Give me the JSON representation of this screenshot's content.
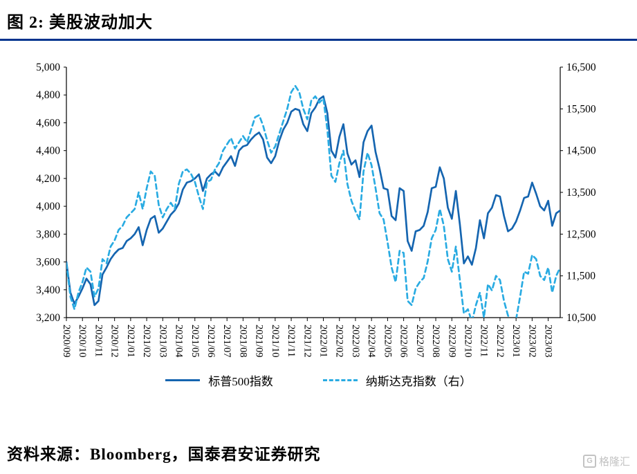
{
  "title": "图 2:  美股波动加大",
  "source": "资料来源：Bloomberg，国泰君安证券研究",
  "watermark": "格隆汇",
  "colors": {
    "divider": "#00338D",
    "sp500": "#1565B0",
    "nasdaq": "#29ABE2"
  },
  "legend": [
    {
      "label": "标普500指数"
    },
    {
      "label": "纳斯达克指数（右）"
    }
  ],
  "chart_data": {
    "type": "line",
    "title": "美股波动加大",
    "x_labels": [
      "2020/09",
      "2020/10",
      "2020/11",
      "2020/12",
      "2021/01",
      "2021/02",
      "2021/03",
      "2021/04",
      "2021/05",
      "2021/06",
      "2021/07",
      "2021/08",
      "2021/09",
      "2021/10",
      "2021/11",
      "2021/12",
      "2022/01",
      "2022/02",
      "2022/03",
      "2022/04",
      "2022/05",
      "2022/06",
      "2022/07",
      "2022/08",
      "2022/09",
      "2022/10",
      "2022/11",
      "2022/12",
      "2023/01",
      "2023/02",
      "2023/03"
    ],
    "left_axis": {
      "min": 3200,
      "max": 5000,
      "step": 200
    },
    "right_axis": {
      "min": 10500,
      "max": 16500,
      "step": 1000
    },
    "legend_position": "bottom",
    "grid": false,
    "series": [
      {
        "name": "标普500指数",
        "axis": "left",
        "style": "solid",
        "color": "#1565B0",
        "values": [
          3600,
          3380,
          3300,
          3350,
          3410,
          3480,
          3440,
          3290,
          3320,
          3510,
          3560,
          3620,
          3660,
          3690,
          3700,
          3750,
          3770,
          3800,
          3850,
          3720,
          3830,
          3910,
          3930,
          3810,
          3840,
          3890,
          3940,
          3970,
          4020,
          4120,
          4170,
          4180,
          4200,
          4230,
          4110,
          4200,
          4230,
          4250,
          4220,
          4280,
          4320,
          4360,
          4290,
          4400,
          4430,
          4440,
          4480,
          4510,
          4530,
          4480,
          4350,
          4310,
          4360,
          4470,
          4550,
          4600,
          4680,
          4700,
          4690,
          4590,
          4540,
          4670,
          4710,
          4770,
          4790,
          4670,
          4400,
          4350,
          4500,
          4590,
          4380,
          4300,
          4330,
          4210,
          4460,
          4540,
          4580,
          4390,
          4270,
          4130,
          4120,
          3930,
          3900,
          4130,
          4110,
          3750,
          3680,
          3820,
          3830,
          3860,
          3960,
          4130,
          4140,
          4280,
          4200,
          3990,
          3910,
          4110,
          3870,
          3590,
          3640,
          3580,
          3700,
          3900,
          3770,
          3950,
          3990,
          4080,
          4070,
          3930,
          3820,
          3840,
          3890,
          3970,
          4060,
          4070,
          4170,
          4090,
          4000,
          3970,
          4040,
          3860,
          3950,
          3970
        ]
      },
      {
        "name": "纳斯达克指数（右）",
        "axis": "right",
        "style": "dashed",
        "color": "#29ABE2",
        "values": [
          11800,
          11000,
          10700,
          11100,
          11350,
          11700,
          11600,
          11000,
          11200,
          11900,
          11800,
          12200,
          12350,
          12600,
          12700,
          12900,
          13000,
          13100,
          13500,
          13100,
          13600,
          14000,
          13900,
          13200,
          12900,
          13100,
          13250,
          13100,
          13700,
          14000,
          14050,
          13950,
          13750,
          13400,
          13100,
          13750,
          13800,
          14050,
          14200,
          14500,
          14650,
          14800,
          14550,
          14700,
          14850,
          14700,
          15000,
          15300,
          15350,
          15100,
          14750,
          14450,
          14600,
          14900,
          15200,
          15500,
          15900,
          16050,
          15900,
          15500,
          15250,
          15700,
          15800,
          15650,
          15750,
          15000,
          13900,
          13750,
          14200,
          14500,
          13700,
          13300,
          13050,
          12850,
          14000,
          14450,
          14150,
          13600,
          13000,
          12850,
          12300,
          11700,
          11350,
          12100,
          12050,
          10900,
          10800,
          11200,
          11350,
          11450,
          11850,
          12400,
          12600,
          13100,
          12700,
          11900,
          11600,
          12200,
          11400,
          10600,
          10700,
          10400,
          10800,
          11100,
          10500,
          11300,
          11150,
          11500,
          11400,
          10900,
          10550,
          10400,
          10450,
          11000,
          11600,
          11550,
          12000,
          11900,
          11500,
          11400,
          11700,
          11100,
          11500,
          11700
        ]
      }
    ]
  }
}
